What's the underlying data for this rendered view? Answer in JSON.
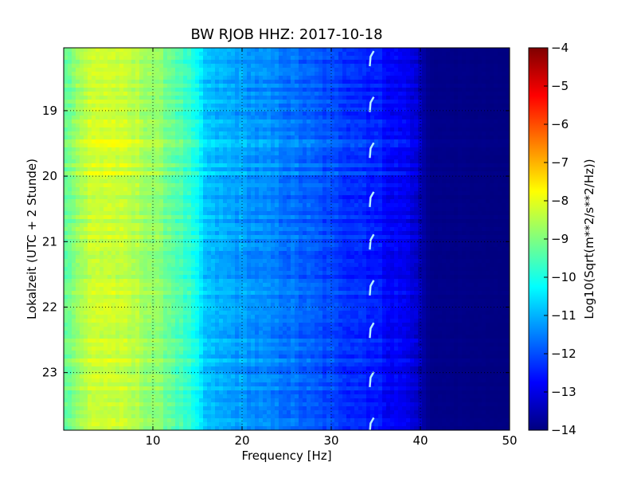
{
  "chart_data": {
    "type": "heatmap",
    "title": "BW RJOB HHZ: 2017-10-18",
    "xlabel": "Frequency [Hz]",
    "ylabel": "Lokalzeit (UTC + 2 Stunde)",
    "xlim": [
      0,
      50
    ],
    "ylim": [
      18.04,
      23.88
    ],
    "y_inverted": true,
    "x_ticks": [
      10,
      20,
      30,
      40,
      50
    ],
    "y_ticks": [
      19,
      20,
      21,
      22,
      23
    ],
    "grid": true,
    "colormap": "jet",
    "colorbar": {
      "label": "Log10(Sqrt(m**2/s**2/Hz))",
      "range": [
        -14,
        -4
      ],
      "ticks": [
        -4,
        -5,
        -6,
        -7,
        -8,
        -9,
        -10,
        -11,
        -12,
        -13,
        -14
      ]
    },
    "level_profile": {
      "frequency_hz": [
        0,
        1,
        3,
        5,
        8,
        10,
        12,
        14,
        15,
        16,
        18,
        20,
        22,
        25,
        28,
        30,
        33,
        35,
        37,
        39,
        40,
        41,
        50
      ],
      "log10_amplitude": [
        -9.4,
        -8.9,
        -8.3,
        -8.2,
        -8.5,
        -8.8,
        -9.2,
        -9.8,
        -10.3,
        -10.9,
        -11.1,
        -11.2,
        -11.4,
        -11.6,
        -11.9,
        -12.1,
        -12.3,
        -12.5,
        -12.8,
        -13.0,
        -13.5,
        -13.9,
        -14.0
      ]
    },
    "repeating_feature": {
      "frequency_hz": 34.5,
      "times": [
        18.2,
        18.9,
        19.6,
        20.35,
        21.0,
        21.7,
        22.35,
        23.1,
        23.8
      ]
    }
  }
}
